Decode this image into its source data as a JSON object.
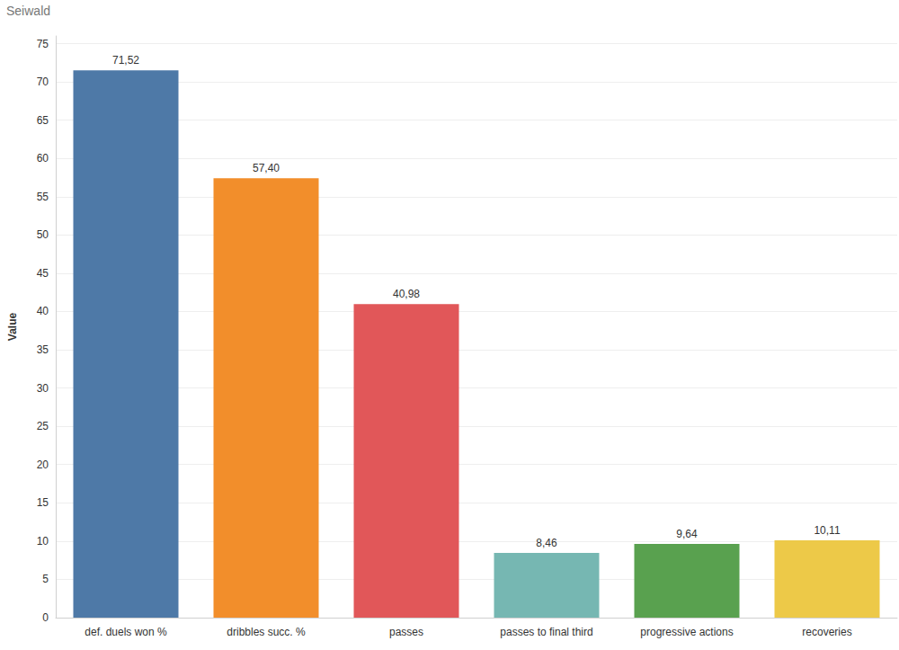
{
  "chart_data": {
    "type": "bar",
    "title": "Seiwald",
    "y_label": "Value",
    "categories": [
      "def. duels won %",
      "dribbles succ. %",
      "passes",
      "passes to final third",
      "progressive actions",
      "recoveries"
    ],
    "values": [
      71.52,
      57.4,
      40.98,
      8.46,
      9.64,
      10.11
    ],
    "value_labels": [
      "71,52",
      "57,40",
      "40,98",
      "8,46",
      "9,64",
      "10,11"
    ],
    "colors": [
      "#4e79a7",
      "#f28e2b",
      "#e15759",
      "#76b7b2",
      "#59a14f",
      "#edc948"
    ],
    "ylim": [
      0,
      76
    ],
    "yticks": [
      0,
      5,
      10,
      15,
      20,
      25,
      30,
      35,
      40,
      45,
      50,
      55,
      60,
      65,
      70,
      75
    ],
    "grid": true,
    "data_labels": true
  }
}
